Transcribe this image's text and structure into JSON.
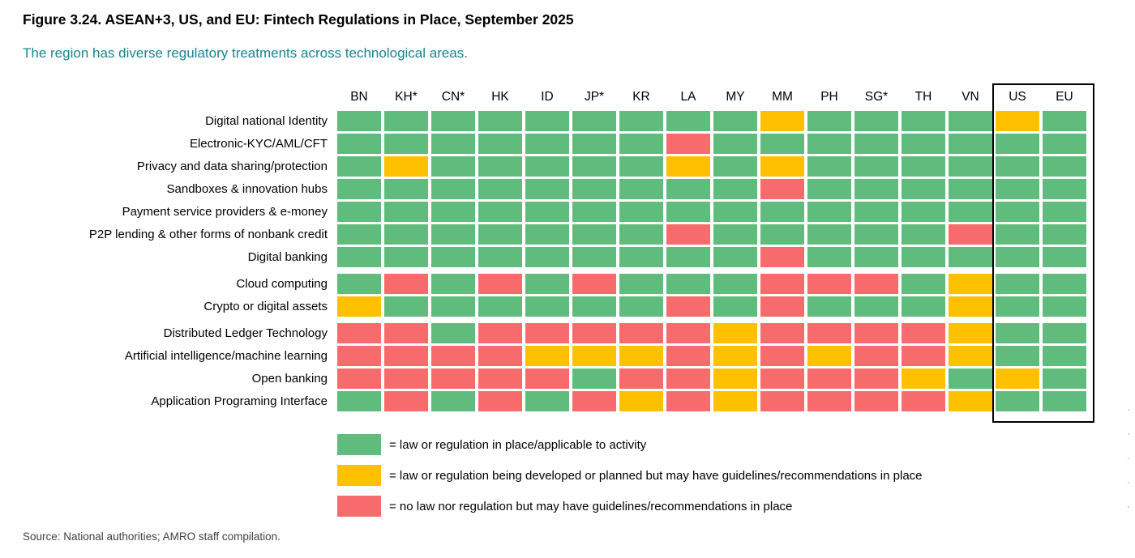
{
  "figure": {
    "title": "Figure 3.24. ASEAN+3, US, and EU: Fintech Regulations in Place, September 2025",
    "subtitle": "The region has diverse regulatory treatments across technological areas.",
    "source": "Source: National authorities; AMRO staff compilation."
  },
  "colors": {
    "green": "#60BC7D",
    "yellow": "#FFC000",
    "red": "#F76B6C",
    "subtitle_teal": "#17858E",
    "highlight_box_border": "#000000"
  },
  "chart_data": {
    "type": "heatmap",
    "columns": [
      "BN",
      "KH*",
      "CN*",
      "HK",
      "ID",
      "JP*",
      "KR",
      "LA",
      "MY",
      "MM",
      "PH",
      "SG*",
      "TH",
      "VN",
      "US",
      "EU"
    ],
    "highlighted_columns": [
      "US",
      "EU"
    ],
    "value_key": {
      "G": "law or regulation in place/applicable to activity",
      "Y": "law or regulation being developed or planned but may have guidelines/recommendations in place",
      "R": "no law nor regulation but may have guidelines/recommendations in place"
    },
    "row_groups": [
      {
        "rows": [
          {
            "label": "Digital national Identity",
            "values": [
              "G",
              "G",
              "G",
              "G",
              "G",
              "G",
              "G",
              "G",
              "G",
              "Y",
              "G",
              "G",
              "G",
              "G",
              "Y",
              "G"
            ]
          },
          {
            "label": "Electronic-KYC/AML/CFT",
            "values": [
              "G",
              "G",
              "G",
              "G",
              "G",
              "G",
              "G",
              "R",
              "G",
              "G",
              "G",
              "G",
              "G",
              "G",
              "G",
              "G"
            ]
          },
          {
            "label": "Privacy and data sharing/protection",
            "values": [
              "G",
              "Y",
              "G",
              "G",
              "G",
              "G",
              "G",
              "Y",
              "G",
              "Y",
              "G",
              "G",
              "G",
              "G",
              "G",
              "G"
            ]
          },
          {
            "label": "Sandboxes & innovation hubs",
            "values": [
              "G",
              "G",
              "G",
              "G",
              "G",
              "G",
              "G",
              "G",
              "G",
              "R",
              "G",
              "G",
              "G",
              "G",
              "G",
              "G"
            ]
          },
          {
            "label": "Payment service providers & e-money",
            "values": [
              "G",
              "G",
              "G",
              "G",
              "G",
              "G",
              "G",
              "G",
              "G",
              "G",
              "G",
              "G",
              "G",
              "G",
              "G",
              "G"
            ]
          },
          {
            "label": "P2P lending & other forms of nonbank credit",
            "values": [
              "G",
              "G",
              "G",
              "G",
              "G",
              "G",
              "G",
              "R",
              "G",
              "G",
              "G",
              "G",
              "G",
              "R",
              "G",
              "G"
            ]
          },
          {
            "label": "Digital banking",
            "values": [
              "G",
              "G",
              "G",
              "G",
              "G",
              "G",
              "G",
              "G",
              "G",
              "R",
              "G",
              "G",
              "G",
              "G",
              "G",
              "G"
            ]
          }
        ]
      },
      {
        "rows": [
          {
            "label": "Cloud computing",
            "values": [
              "G",
              "R",
              "G",
              "R",
              "G",
              "R",
              "G",
              "G",
              "G",
              "R",
              "R",
              "R",
              "G",
              "Y",
              "G",
              "G"
            ]
          },
          {
            "label": "Crypto or digital assets",
            "values": [
              "Y",
              "G",
              "G",
              "G",
              "G",
              "G",
              "G",
              "R",
              "G",
              "R",
              "G",
              "G",
              "G",
              "Y",
              "G",
              "G"
            ]
          }
        ]
      },
      {
        "rows": [
          {
            "label": "Distributed Ledger Technology",
            "values": [
              "R",
              "R",
              "G",
              "R",
              "R",
              "R",
              "R",
              "R",
              "Y",
              "R",
              "R",
              "R",
              "R",
              "Y",
              "G",
              "G"
            ]
          },
          {
            "label": "Artificial intelligence/machine learning",
            "values": [
              "R",
              "R",
              "R",
              "R",
              "Y",
              "Y",
              "Y",
              "R",
              "Y",
              "R",
              "Y",
              "R",
              "R",
              "Y",
              "G",
              "G"
            ]
          },
          {
            "label": "Open banking",
            "values": [
              "R",
              "R",
              "R",
              "R",
              "R",
              "G",
              "R",
              "R",
              "Y",
              "R",
              "R",
              "R",
              "Y",
              "G",
              "Y",
              "G"
            ]
          },
          {
            "label": "Application Programing Interface",
            "values": [
              "G",
              "R",
              "G",
              "R",
              "G",
              "R",
              "Y",
              "R",
              "Y",
              "R",
              "R",
              "R",
              "R",
              "Y",
              "G",
              "G"
            ]
          }
        ]
      }
    ],
    "legend": [
      {
        "color_key": "G",
        "label": "= law or regulation in place/applicable to activity"
      },
      {
        "color_key": "Y",
        "label": "= law or regulation being developed or planned but may have guidelines/recommendations in place"
      },
      {
        "color_key": "R",
        "label": "= no law nor regulation but may have guidelines/recommendations in place"
      }
    ]
  }
}
